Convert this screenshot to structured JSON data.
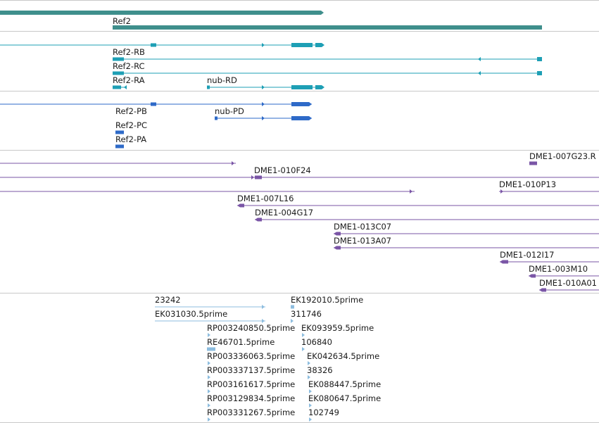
{
  "colors": {
    "background": "#ffffff",
    "separator": "#c8c8c8",
    "reference": "#3f8f8c",
    "transcript_a": "#1e9fb5",
    "transcript_b": "#2e6ac8",
    "clone": "#7a55a6",
    "est": "#8dbddf",
    "text": "#1a1a1a"
  },
  "tracks": [
    {
      "name": "gene-track",
      "labels": [
        "Ref2"
      ]
    },
    {
      "name": "transcript-track-a",
      "labels": [
        "Ref2-RB",
        "Ref2-RC",
        "Ref2-RA",
        "nub-RD"
      ]
    },
    {
      "name": "transcript-track-b",
      "labels": [
        "Ref2-PB",
        "nub-PD",
        "Ref2-PC",
        "Ref2-PA"
      ]
    },
    {
      "name": "clone-track",
      "labels": [
        "DME1-007G23.R",
        "DME1-010F24",
        "DME1-010P13",
        "DME1-007L16",
        "DME1-004G17",
        "DME1-013C07",
        "DME1-013A07",
        "DME1-012I17",
        "DME1-003M10",
        "DME1-010A01"
      ]
    },
    {
      "name": "est-track",
      "labels": [
        "23242",
        "EK031030.5prime",
        "EK192010.5prime",
        "311746",
        "RP003240850.5prime",
        "EK093959.5prime",
        "RE46701.5prime",
        "106840",
        "RP003336063.5prime",
        "EK042634.5prime",
        "RP003337137.5prime",
        "38326",
        "RP003161617.5prime",
        "EK088447.5prime",
        "RP003129834.5prime",
        "EK080647.5prime",
        "RP003331267.5prime",
        "102749"
      ]
    }
  ]
}
